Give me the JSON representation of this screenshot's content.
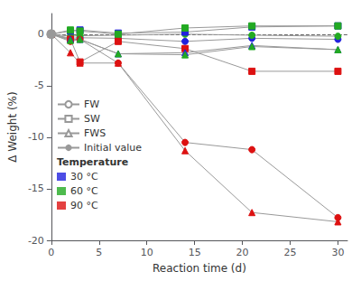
{
  "chart_data": {
    "type": "line",
    "xlabel": "Reaction time (d)",
    "ylabel": "Δ Weight (%)",
    "xlim": [
      0,
      31
    ],
    "ylim": [
      -20,
      2
    ],
    "xticks": [
      0,
      5,
      10,
      15,
      20,
      25,
      30
    ],
    "yticks": [
      0,
      -5,
      -10,
      -15,
      -20
    ],
    "grid": false,
    "legend": "left",
    "line_color": "#999999",
    "reference_line": {
      "y": 0,
      "color": "#666666",
      "line_style": "dashed"
    },
    "initial_value": {
      "label": "Initial value",
      "x": 0,
      "y": 0,
      "color": "#999999",
      "marker": "circle"
    },
    "marker_legend": [
      {
        "label": "FW",
        "marker": "circle"
      },
      {
        "label": "SW",
        "marker": "square"
      },
      {
        "label": "FWS",
        "marker": "triangle"
      }
    ],
    "color_legend": {
      "title": "Temperature",
      "entries": [
        {
          "label": "30 °C",
          "color": "#2121de"
        },
        {
          "label": "60 °C",
          "color": "#22aa22"
        },
        {
          "label": "90 °C",
          "color": "#dd1111"
        }
      ]
    },
    "series": [
      {
        "color": "#2121de",
        "marker": "circle",
        "x": [
          0,
          2,
          3,
          7,
          14,
          21,
          30
        ],
        "values": [
          0,
          -0.4,
          -0.35,
          -0.4,
          -0.7,
          -0.4,
          -0.5
        ]
      },
      {
        "color": "#22aa22",
        "marker": "circle",
        "x": [
          0,
          2,
          3,
          7,
          14,
          21,
          30
        ],
        "values": [
          0,
          -0.2,
          -0.15,
          -0.1,
          0.0,
          -0.1,
          -0.2
        ]
      },
      {
        "color": "#dd1111",
        "marker": "circle",
        "x": [
          0,
          2,
          3,
          7,
          14,
          21,
          30
        ],
        "values": [
          0,
          -0.7,
          -0.5,
          -2.8,
          -10.5,
          -11.2,
          -17.8
        ]
      },
      {
        "color": "#2121de",
        "marker": "square",
        "x": [
          0,
          2,
          3,
          7,
          14,
          21,
          30
        ],
        "values": [
          0,
          0.3,
          0.4,
          0.1,
          0.2,
          0.7,
          0.8
        ]
      },
      {
        "color": "#22aa22",
        "marker": "square",
        "x": [
          0,
          2,
          3,
          7,
          14,
          21,
          30
        ],
        "values": [
          0,
          0.4,
          0.3,
          0.0,
          0.6,
          0.8,
          0.8
        ]
      },
      {
        "color": "#dd1111",
        "marker": "square",
        "x": [
          0,
          2,
          3,
          7,
          14,
          21,
          30
        ],
        "values": [
          0,
          -0.5,
          -2.7,
          -0.7,
          -1.4,
          -3.6,
          -3.6
        ]
      },
      {
        "color": "#2121de",
        "marker": "triangle",
        "x": [
          0,
          2,
          3,
          7,
          14,
          21,
          30
        ],
        "values": [
          0,
          -0.5,
          -0.5,
          -1.9,
          -1.8,
          -1.1,
          -1.5
        ]
      },
      {
        "color": "#22aa22",
        "marker": "triangle",
        "x": [
          0,
          2,
          3,
          7,
          14,
          21,
          30
        ],
        "values": [
          0,
          -0.6,
          -0.5,
          -1.9,
          -2.0,
          -1.2,
          -1.5
        ]
      },
      {
        "color": "#dd1111",
        "marker": "triangle",
        "x": [
          0,
          2,
          3,
          7,
          14,
          21,
          30
        ],
        "values": [
          0,
          -1.8,
          -2.8,
          -2.8,
          -11.3,
          -17.3,
          -18.2
        ]
      }
    ]
  }
}
